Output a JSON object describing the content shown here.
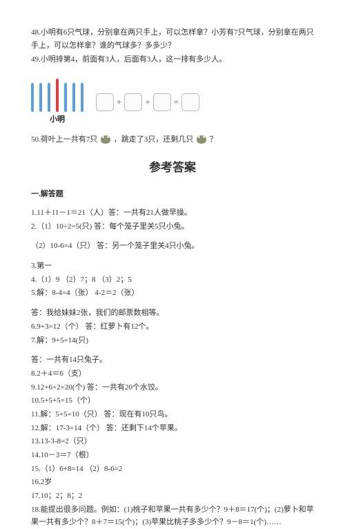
{
  "questions": {
    "q48": "48.小明有6只气球，分别拿在两只手上，可以怎样拿？小芳有7只气球，分别拿在两只手上，可以怎样拿？谁的气球多？多多少？",
    "q49": "49.小明排第4，前面有3人，后面有3人，这一排有多少人。",
    "q50_a": "50.荷叶上一共有7只",
    "q50_b": "，跳走了3只，还剩几只",
    "q50_c": "？"
  },
  "diagram": {
    "bars_label": "小明",
    "bar_colors": [
      "#5aa0dc",
      "#5aa0dc",
      "#5aa0dc",
      "#e23b3b",
      "#5aa0dc",
      "#5aa0dc",
      "#5aa0dc"
    ],
    "bar_height_red": 48,
    "plus": "+",
    "equals": "="
  },
  "answers": {
    "title": "参考答案",
    "section": "一.解答题",
    "lines": [
      "1.11＋11－1＝21（人）答：一共有21人做早操。",
      "2.（1）10÷2=5(只)          答：每个笼子里关5只小兔。",
      "",
      "（2）10-6=4（只）        答：另一个笼子里关4只小兔。",
      "",
      "3.第一",
      "4.（1）9 （2）7；8   （3）2；5",
      "5.解：8-4=4（张）       4-2＝2（张）",
      "",
      "答：我给妹妹2张，我们的邮票数相等。",
      "6.9+3=12（个）       答：红萝卜有12个。",
      "7.解：9+5=14(只)",
      "",
      "答：一共有14只兔子。",
      "8.2＋4＝6（支）",
      "9.12+6+2=20(个)         答：一共有20个水饺。",
      "10.5+5+5=15（个）",
      "11.解：5+5=10（只）        答：现在有10只鸟。",
      "12.解：17-3=14（个）       答：还剩下14个苹果。",
      "13.13-3-8=2（只）",
      "14.10－3＝7（根）",
      "15.（1）6+8=14   （2）8-6=2",
      "16.2岁",
      "17.10；2；8；2",
      "18.能提出很多问题。例如：(1)桃子和苹果一共有多少个？9＋8＝17(个)；(2)萝卜和苹果一共有多少个？8＋7＝15(个)；(3)苹果比桃子多多少个？9－8＝1(个)……"
    ]
  }
}
